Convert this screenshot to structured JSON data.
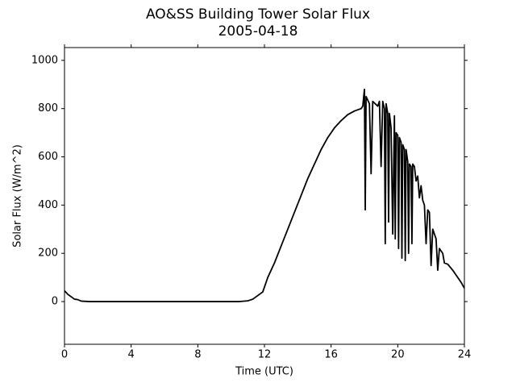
{
  "chart_data": {
    "type": "line",
    "title": "AO&SS Building Tower Solar Flux",
    "subtitle": "2005-04-18",
    "x_label": "Time (UTC)",
    "y_label": "Solar Flux (W/m^2)",
    "color": "#000000",
    "x": [
      0,
      0.2,
      0.4,
      0.6,
      0.8,
      1.0,
      1.5,
      10.5,
      11,
      11.3,
      11.6,
      11.9,
      12.2,
      12.6,
      13,
      13.4,
      13.8,
      14.2,
      14.6,
      15,
      15.4,
      15.8,
      16.2,
      16.6,
      17,
      17.4,
      17.8,
      17.9,
      18.0,
      18.05,
      18.1,
      18.3,
      18.4,
      18.5,
      18.8,
      18.9,
      19.0,
      19.1,
      19.2,
      19.25,
      19.3,
      19.4,
      19.45,
      19.5,
      19.6,
      19.7,
      19.8,
      19.85,
      19.9,
      20.0,
      20.05,
      20.1,
      20.2,
      20.25,
      20.3,
      20.4,
      20.45,
      20.5,
      20.6,
      20.65,
      20.7,
      20.8,
      20.85,
      20.9,
      21.0,
      21.1,
      21.2,
      21.3,
      21.4,
      21.5,
      21.6,
      21.7,
      21.8,
      21.9,
      22.0,
      22.1,
      22.3,
      22.4,
      22.5,
      22.7,
      22.8,
      23.0,
      23.3,
      23.6,
      23.8,
      24
    ],
    "values": [
      45,
      30,
      20,
      10,
      8,
      2,
      0,
      0,
      3,
      10,
      25,
      40,
      100,
      160,
      230,
      300,
      370,
      440,
      510,
      570,
      630,
      680,
      720,
      750,
      775,
      790,
      800,
      810,
      880,
      380,
      850,
      820,
      530,
      830,
      810,
      830,
      560,
      830,
      800,
      240,
      820,
      780,
      330,
      780,
      720,
      280,
      770,
      260,
      700,
      690,
      220,
      680,
      660,
      180,
      650,
      630,
      170,
      630,
      580,
      200,
      570,
      560,
      240,
      570,
      560,
      500,
      520,
      430,
      480,
      420,
      400,
      240,
      380,
      370,
      150,
      300,
      260,
      130,
      220,
      200,
      160,
      155,
      130,
      100,
      80,
      55
    ],
    "xlim": [
      0,
      24
    ],
    "xticks": [
      0,
      4,
      8,
      12,
      16,
      20,
      24
    ],
    "ylim": [
      -177,
      1053
    ],
    "yticks": [
      0,
      200,
      400,
      600,
      800,
      1000
    ]
  }
}
